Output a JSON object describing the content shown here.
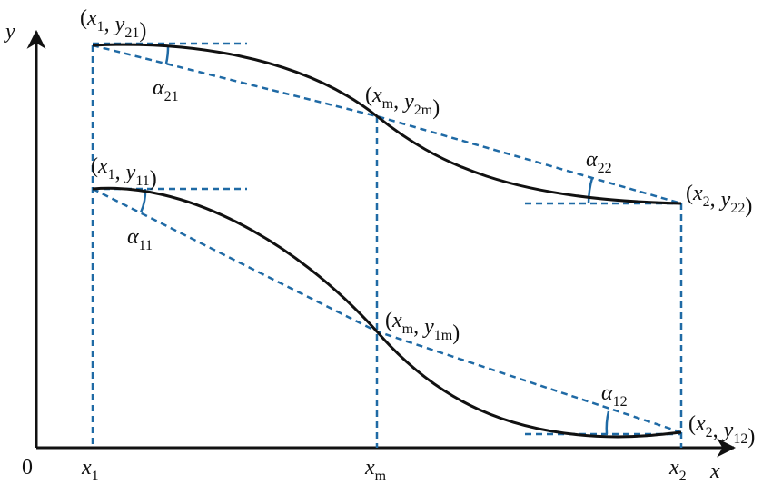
{
  "axes": {
    "y": "y",
    "origin": "0",
    "x": "x"
  },
  "x_marks": [
    [
      {
        "text": "x",
        "sub": "1"
      }
    ],
    [
      {
        "text": "x",
        "sub": "m"
      }
    ],
    [
      {
        "text": "x",
        "sub": "2"
      }
    ]
  ],
  "labels": [
    [
      "(",
      {
        "text": "x",
        "sub": "1"
      },
      ", ",
      {
        "text": "y",
        "sub": "21"
      },
      ")"
    ],
    [
      {
        "text": "α",
        "sub": "21"
      }
    ],
    [
      "(",
      {
        "text": "x",
        "sub": "m"
      },
      ", ",
      {
        "text": "y",
        "sub": "2m"
      },
      ")"
    ],
    [
      {
        "text": "α",
        "sub": "22"
      }
    ],
    [
      "(",
      {
        "text": "x",
        "sub": "2"
      },
      ", ",
      {
        "text": "y",
        "sub": "22"
      },
      ")"
    ],
    [
      "(",
      {
        "text": "x",
        "sub": "1"
      },
      ", ",
      {
        "text": "y",
        "sub": "11"
      },
      ")"
    ],
    [
      {
        "text": "α",
        "sub": "11"
      }
    ],
    [
      "(",
      {
        "text": "x",
        "sub": "m"
      },
      ", ",
      {
        "text": "y",
        "sub": "1m"
      },
      ")"
    ],
    [
      {
        "text": "α",
        "sub": "12"
      }
    ],
    [
      "(",
      {
        "text": "x",
        "sub": "2"
      },
      ", ",
      {
        "text": "y",
        "sub": "12"
      },
      ")"
    ]
  ]
}
